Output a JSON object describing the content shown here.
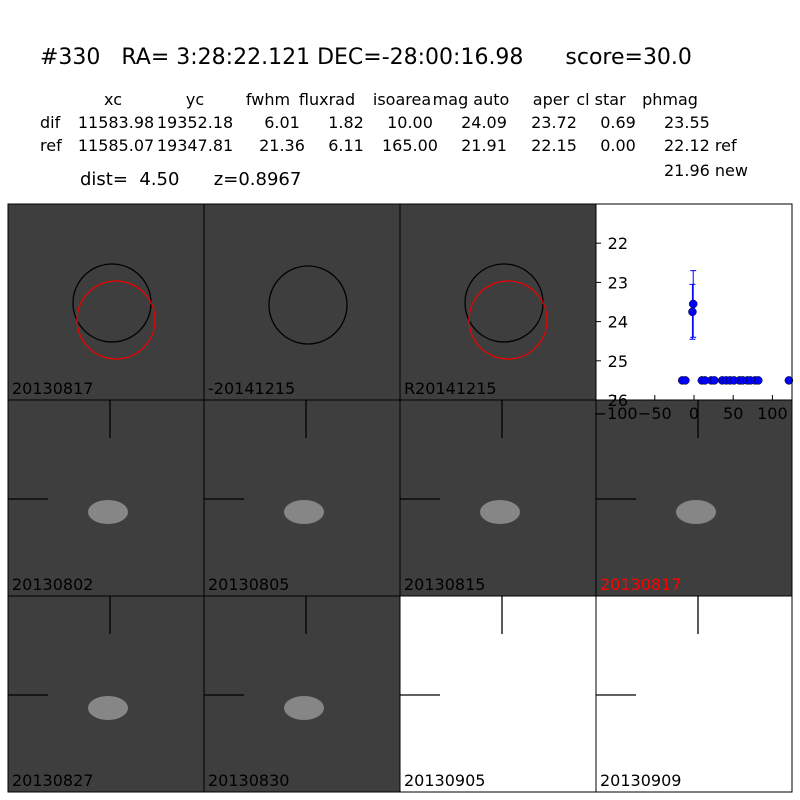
{
  "header": {
    "title": "#330   RA= 3:28:22.121 DEC=-28:00:16.98      score=30.0"
  },
  "table": {
    "columns": [
      "xc",
      "yc",
      "fwhm",
      "fluxrad",
      "isoarea",
      "mag auto",
      "aper",
      "cl star",
      "phmag"
    ],
    "rows": [
      [
        "dif",
        "11583.98",
        "19352.18",
        "6.01",
        "1.82",
        "10.00",
        "24.09",
        "23.72",
        "0.69",
        "23.55"
      ],
      [
        "ref",
        "11585.07",
        "19347.81",
        "21.36",
        "6.11",
        "165.00",
        "21.91",
        "22.15",
        "0.00",
        "22.12 ref"
      ]
    ]
  },
  "dist": "dist=  4.50      z=0.8967",
  "new_mag": "21.96 new",
  "stamps": [
    {
      "label": "20130817",
      "color": "#000000"
    },
    {
      "label": "-20141215",
      "color": "#000000"
    },
    {
      "label": "R20141215",
      "color": "#000000"
    },
    {
      "label": "20130802",
      "color": "#000000"
    },
    {
      "label": "20130805",
      "color": "#000000"
    },
    {
      "label": "20130815",
      "color": "#000000"
    },
    {
      "label": "20130817",
      "color": "#ff0000"
    },
    {
      "label": "20130827",
      "color": "#000000"
    },
    {
      "label": "20130830",
      "color": "#000000"
    },
    {
      "label": "20130905",
      "color": "#000000",
      "blank": true
    },
    {
      "label": "20130909",
      "color": "#000000",
      "blank": true
    }
  ],
  "chart_data": {
    "type": "scatter",
    "xlim": [
      -125,
      125
    ],
    "ylim": [
      26,
      21
    ],
    "xticks": [
      {
        "value": -100,
        "label": "−100"
      },
      {
        "value": -50,
        "label": "−50"
      },
      0,
      50,
      100
    ],
    "yticks": [
      22,
      23,
      24,
      25,
      26
    ],
    "series": [
      {
        "color": "#0000ff",
        "x": [
          -2,
          -1
        ],
        "values": [
          23.75,
          23.55
        ],
        "errors": [
          0.7,
          0.85
        ]
      },
      {
        "color": "#0000ff",
        "x": [
          -15,
          -11,
          10,
          14,
          22,
          26,
          36,
          41,
          46,
          51,
          58,
          62,
          68,
          72,
          78,
          82,
          121
        ],
        "values": [
          25.5,
          25.5,
          25.5,
          25.5,
          25.5,
          25.5,
          25.5,
          25.5,
          25.5,
          25.5,
          25.5,
          25.5,
          25.5,
          25.5,
          25.5,
          25.5,
          25.5
        ]
      }
    ]
  }
}
